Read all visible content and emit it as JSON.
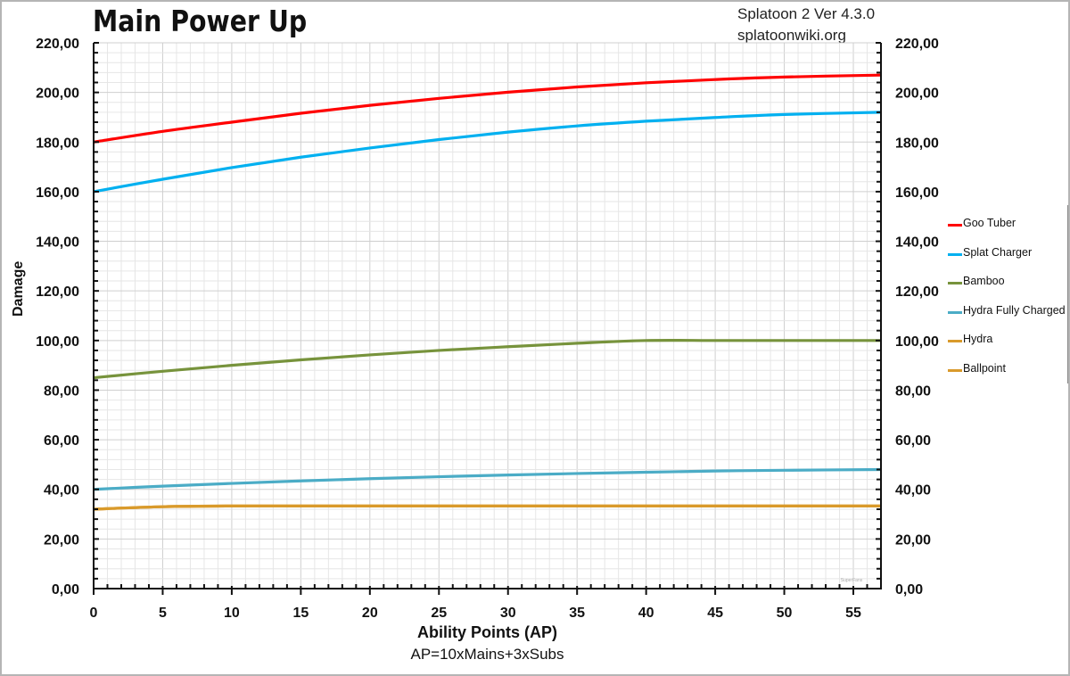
{
  "header": {
    "title": "Main Power Up",
    "source_line1": "Splatoon 2 Ver 4.3.0",
    "source_line2": "splatoonwiki.org"
  },
  "axes": {
    "ylabel": "Damage",
    "xlabel": "Ability Points (AP)",
    "xsub": "AP=10xMains+3xSubs",
    "y_ticks": [
      "0,00",
      "20,00",
      "40,00",
      "60,00",
      "80,00",
      "100,00",
      "120,00",
      "140,00",
      "160,00",
      "180,00",
      "200,00",
      "220,00"
    ],
    "x_ticks": [
      "0",
      "5",
      "10",
      "15",
      "20",
      "25",
      "30",
      "35",
      "40",
      "45",
      "50",
      "55"
    ]
  },
  "watermark": "SuperFans",
  "legend": [
    {
      "label": "Goo Tuber",
      "color": "#ff0000"
    },
    {
      "label": "Splat Charger",
      "color": "#00b0f0"
    },
    {
      "label": "Bamboo",
      "color": "#77933c"
    },
    {
      "label": "Hydra Fully Charged",
      "color": "#4bacc6"
    },
    {
      "label": "Hydra",
      "color": "#d99a2b"
    },
    {
      "label": "Ballpoint",
      "color": "#d99a2b"
    }
  ],
  "chart_data": {
    "type": "line",
    "title": "Main Power Up",
    "subtitle": "Splatoon 2 Ver 4.3.0 / splatoonwiki.org",
    "xlabel": "Ability Points (AP)",
    "xlabel_note": "AP=10xMains+3xSubs",
    "ylabel": "Damage",
    "xlim": [
      0,
      57
    ],
    "ylim": [
      0,
      220
    ],
    "grid": true,
    "legend_position": "right",
    "x": [
      0,
      5,
      10,
      15,
      20,
      25,
      30,
      35,
      40,
      45,
      50,
      57
    ],
    "series": [
      {
        "name": "Goo Tuber",
        "color": "#ff0000",
        "values": [
          180,
          184.3,
          188.0,
          191.6,
          194.8,
          197.6,
          200.1,
          202.2,
          203.9,
          205.2,
          206.2,
          207.0
        ]
      },
      {
        "name": "Splat Charger",
        "color": "#00b0f0",
        "values": [
          160,
          165.0,
          169.7,
          173.9,
          177.6,
          181.0,
          184.0,
          186.5,
          188.4,
          189.9,
          191.1,
          192.0
        ]
      },
      {
        "name": "Bamboo",
        "color": "#77933c",
        "values": [
          85,
          87.6,
          90.0,
          92.2,
          94.2,
          96.0,
          97.5,
          98.9,
          100,
          100,
          100,
          100
        ]
      },
      {
        "name": "Hydra Fully Charged",
        "color": "#4bacc6",
        "values": [
          40,
          41.3,
          42.4,
          43.4,
          44.3,
          45.1,
          45.8,
          46.4,
          46.9,
          47.4,
          47.7,
          48.0
        ]
      },
      {
        "name": "Hydra",
        "color": "#d99a2b",
        "values": [
          32,
          33.0,
          33.3,
          33.3,
          33.3,
          33.3,
          33.3,
          33.3,
          33.3,
          33.3,
          33.3,
          33.3
        ]
      },
      {
        "name": "Ballpoint",
        "color": "#d99a2b",
        "values": [
          32,
          33.0,
          33.3,
          33.3,
          33.3,
          33.3,
          33.3,
          33.3,
          33.3,
          33.3,
          33.3,
          33.3
        ]
      }
    ]
  }
}
